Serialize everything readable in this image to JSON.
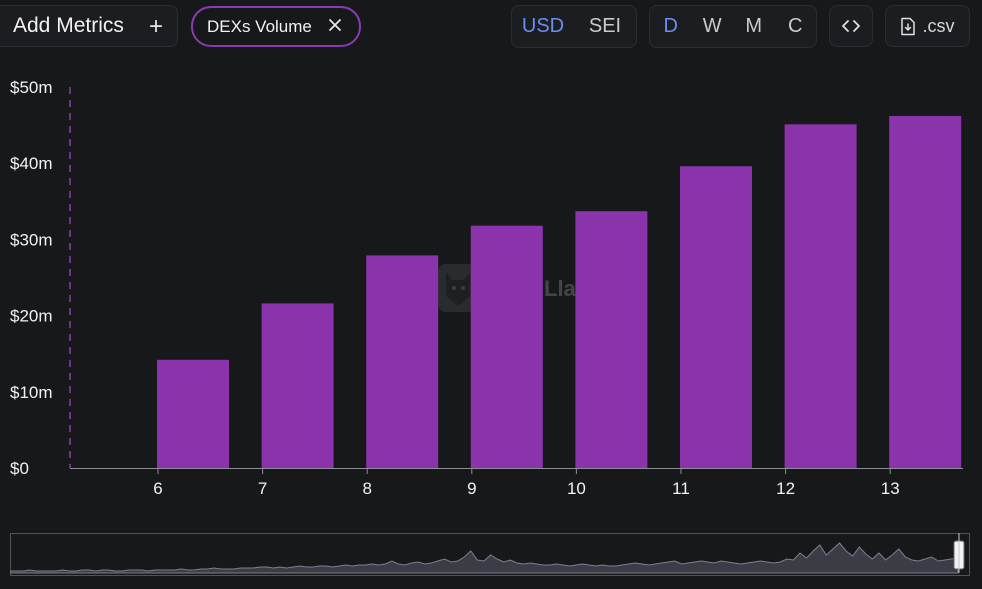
{
  "toolbar": {
    "add_metrics_label": "Add Metrics",
    "add_icon": "plus-icon",
    "metric_chip_label": "DEXs Volume",
    "remove_icon": "close-icon",
    "unit_options": [
      {
        "label": "USD",
        "active": true
      },
      {
        "label": "SEI",
        "active": false
      }
    ],
    "period_options": [
      {
        "label": "D",
        "active": true
      },
      {
        "label": "W",
        "active": false
      },
      {
        "label": "M",
        "active": false
      },
      {
        "label": "C",
        "active": false
      }
    ],
    "embed_icon": "code-icon",
    "csv_label": ".csv",
    "csv_icon": "download-file-icon"
  },
  "colors": {
    "background": "#17181a",
    "bar": "#8a33ab",
    "accent_active": "#6c8cf2",
    "pill_border": "#8a3bb3"
  },
  "chart_data": {
    "type": "bar",
    "categories": [
      "6",
      "7",
      "8",
      "9",
      "10",
      "11",
      "12",
      "13"
    ],
    "values": [
      14.2,
      21.6,
      27.9,
      31.8,
      33.7,
      39.6,
      45.1,
      46.2
    ],
    "value_unit": "$m",
    "y_ticks": [
      "$0",
      "$10m",
      "$20m",
      "$30m",
      "$40m",
      "$50m"
    ],
    "ylim": [
      0,
      50
    ],
    "grid": false,
    "legend": "none"
  },
  "watermark_text": "Lla",
  "navigator": {
    "overview": [
      2,
      2,
      2,
      3,
      2,
      2,
      2,
      2,
      3,
      2,
      2,
      3,
      3,
      2,
      3,
      3,
      2,
      2,
      3,
      3,
      3,
      2,
      3,
      3,
      3,
      3,
      4,
      3,
      3,
      4,
      4,
      5,
      4,
      4,
      4,
      5,
      5,
      5,
      6,
      6,
      5,
      6,
      5,
      6,
      7,
      6,
      6,
      7,
      7,
      6,
      7,
      8,
      7,
      8,
      8,
      9,
      8,
      9,
      12,
      9,
      8,
      10,
      11,
      9,
      10,
      12,
      14,
      11,
      12,
      16,
      22,
      13,
      12,
      18,
      14,
      11,
      13,
      10,
      9,
      10,
      9,
      8,
      8,
      9,
      8,
      7,
      8,
      9,
      8,
      7,
      8,
      7,
      7,
      8,
      9,
      10,
      9,
      8,
      9,
      10,
      11,
      12,
      9,
      10,
      11,
      12,
      11,
      10,
      12,
      11,
      10,
      9,
      10,
      11,
      12,
      11,
      10,
      11,
      14,
      13,
      20,
      15,
      22,
      28,
      18,
      24,
      30,
      22,
      17,
      26,
      19,
      14,
      20,
      13,
      18,
      24,
      16,
      13,
      12,
      14,
      16,
      12,
      13,
      14,
      15
    ]
  }
}
